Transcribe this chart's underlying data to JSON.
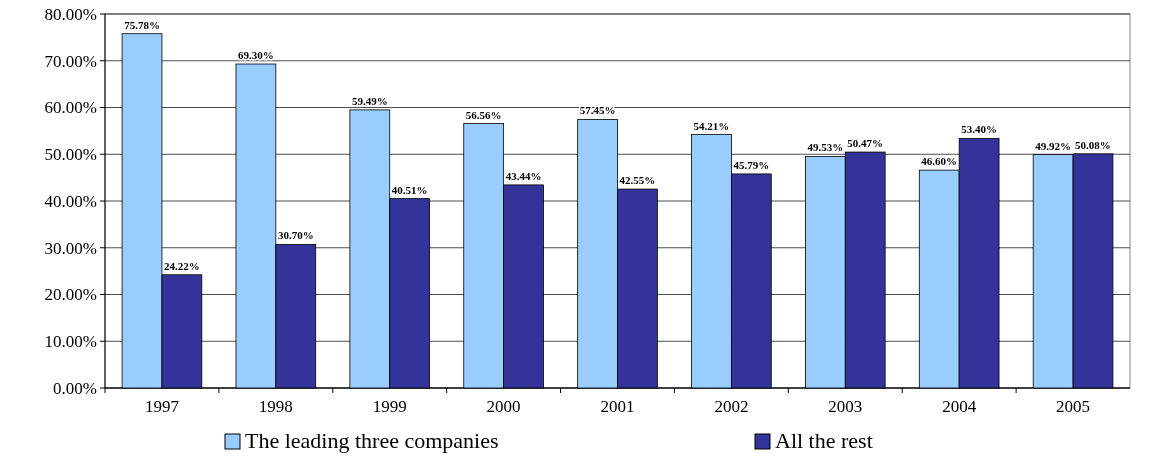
{
  "chart_data": {
    "type": "bar",
    "categories": [
      "1997",
      "1998",
      "1999",
      "2000",
      "2001",
      "2002",
      "2003",
      "2004",
      "2005"
    ],
    "series": [
      {
        "name": "The leading three companies",
        "color": "#99ccff",
        "values": [
          75.78,
          69.3,
          59.49,
          56.56,
          57.45,
          54.21,
          49.53,
          46.6,
          49.92
        ],
        "value_labels": [
          "75.78%",
          "69.30%",
          "59.49%",
          "56.56%",
          "57.45%",
          "54.21%",
          "49.53%",
          "46.60%",
          "49.92%"
        ]
      },
      {
        "name": "All the rest",
        "color": "#333399",
        "values": [
          24.22,
          30.7,
          40.51,
          43.44,
          42.55,
          45.79,
          50.47,
          53.4,
          50.08
        ],
        "value_labels": [
          "24.22%",
          "30.70%",
          "40.51%",
          "43.44%",
          "42.55%",
          "45.79%",
          "50.47%",
          "53.40%",
          "50.08%"
        ]
      }
    ],
    "ylim": [
      0,
      80
    ],
    "yticks": [
      {
        "value": 0,
        "label": "0.00%"
      },
      {
        "value": 10,
        "label": "10.00%"
      },
      {
        "value": 20,
        "label": "20.00%"
      },
      {
        "value": 30,
        "label": "30.00%"
      },
      {
        "value": 40,
        "label": "40.00%"
      },
      {
        "value": 50,
        "label": "50.00%"
      },
      {
        "value": 60,
        "label": "60.00%"
      },
      {
        "value": 70,
        "label": "70.00%"
      },
      {
        "value": 80,
        "label": "80.00%"
      }
    ],
    "grid": "y",
    "legend": "bottom"
  }
}
